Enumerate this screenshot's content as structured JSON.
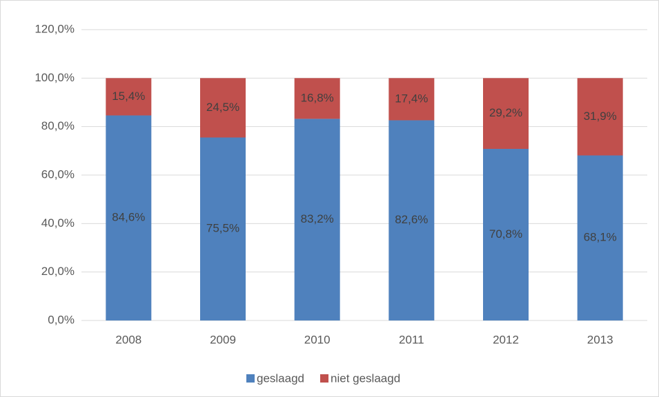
{
  "chart_data": {
    "type": "stacked_bar",
    "categories": [
      "2008",
      "2009",
      "2010",
      "2011",
      "2012",
      "2013"
    ],
    "series": [
      {
        "name": "geslaagd",
        "color": "#4f81bd",
        "values": [
          84.6,
          75.5,
          83.2,
          82.6,
          70.8,
          68.1
        ],
        "value_labels": [
          "84,6%",
          "75,5%",
          "83,2%",
          "82,6%",
          "70,8%",
          "68,1%"
        ]
      },
      {
        "name": "niet geslaagd",
        "color": "#c0504d",
        "values": [
          15.4,
          24.5,
          16.8,
          17.4,
          29.2,
          31.9
        ],
        "value_labels": [
          "15,4%",
          "24,5%",
          "16,8%",
          "17,4%",
          "29,2%",
          "31,9%"
        ]
      }
    ],
    "ylim": [
      0,
      120
    ],
    "yticks": [
      {
        "value": 0,
        "label": "0,0%"
      },
      {
        "value": 20,
        "label": "20,0%"
      },
      {
        "value": 40,
        "label": "40,0%"
      },
      {
        "value": 60,
        "label": "60,0%"
      },
      {
        "value": 80,
        "label": "80,0%"
      },
      {
        "value": 100,
        "label": "100,0%"
      },
      {
        "value": 120,
        "label": "120,0%"
      }
    ],
    "grid": true,
    "legend": "bottom"
  }
}
